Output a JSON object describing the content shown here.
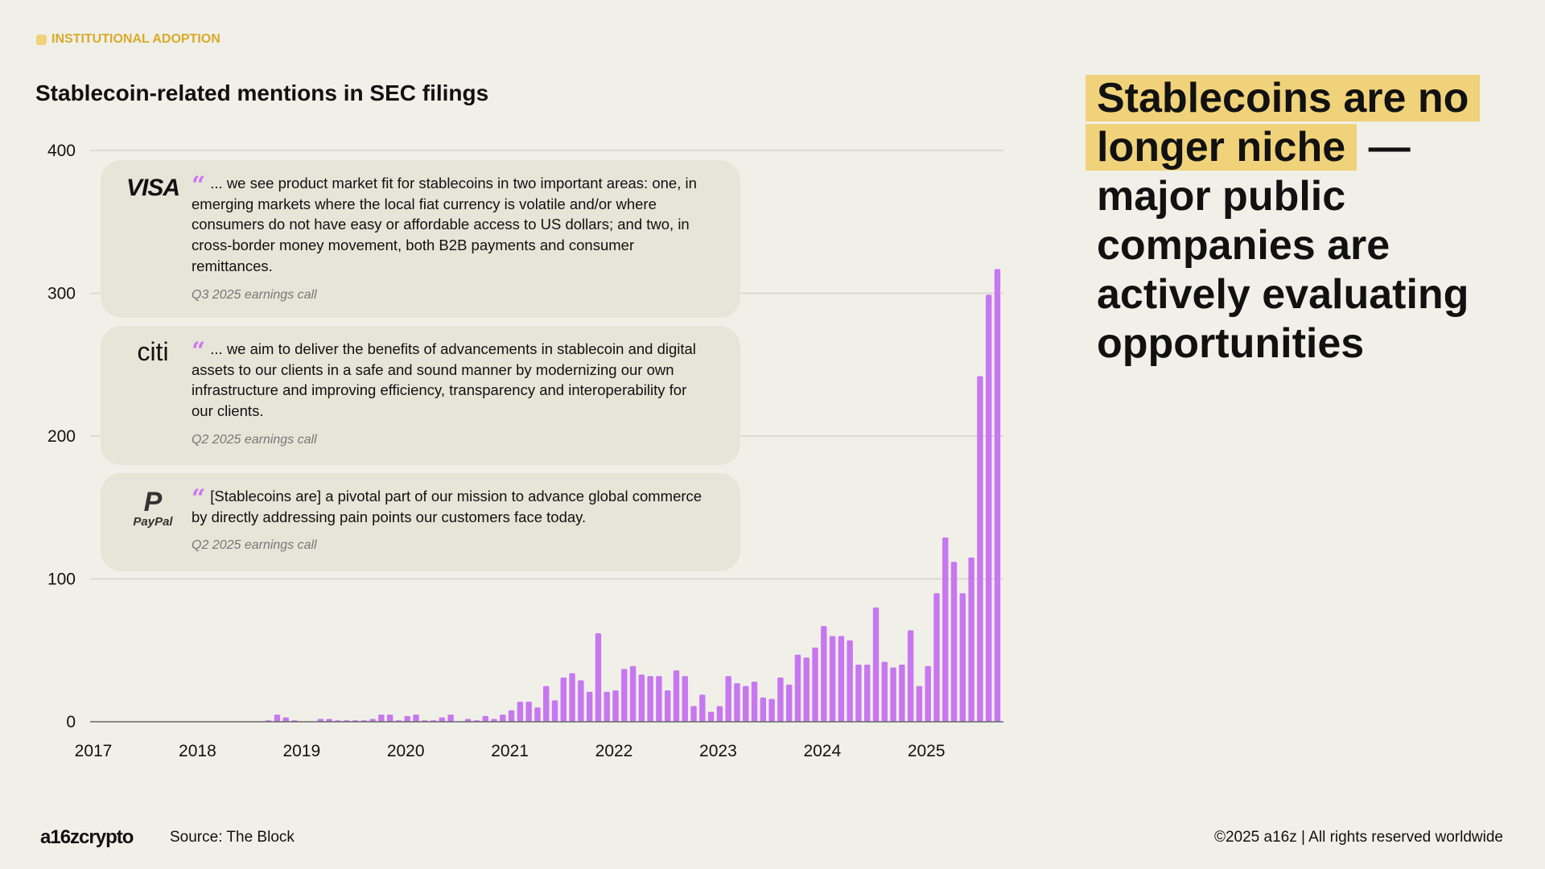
{
  "section_tag": "INSTITUTIONAL ADOPTION",
  "colors": {
    "accent": "#C777F0",
    "tag": "#D9A92C",
    "highlight": "#F0D27A",
    "card": "#E7E4D8"
  },
  "chart_data": {
    "type": "bar",
    "title": "Stablecoin-related mentions in SEC filings",
    "ylim": [
      0,
      400
    ],
    "yticks": [
      "0",
      "100",
      "200",
      "300",
      "400"
    ],
    "xticks": [
      "2017",
      "2018",
      "2019",
      "2020",
      "2021",
      "2022",
      "2023",
      "2024",
      "2025"
    ],
    "grid": true,
    "x_start": "2017-01",
    "x_unit": "month",
    "values": [
      0,
      0,
      0,
      0,
      0,
      0,
      0,
      0,
      0,
      0,
      0,
      0,
      0,
      0,
      0,
      0,
      0,
      0,
      0,
      0,
      1,
      5,
      3,
      1,
      0,
      0,
      2,
      2,
      1,
      1,
      1,
      1,
      2,
      5,
      5,
      1,
      4,
      5,
      1,
      1,
      3,
      5,
      0,
      2,
      1,
      4,
      2,
      5,
      8,
      14,
      14,
      10,
      25,
      15,
      31,
      34,
      29,
      21,
      62,
      21,
      22,
      37,
      39,
      33,
      32,
      32,
      22,
      36,
      32,
      11,
      19,
      7,
      11,
      32,
      27,
      25,
      28,
      17,
      16,
      31,
      26,
      47,
      45,
      52,
      67,
      60,
      60,
      57,
      40,
      40,
      80,
      42,
      38,
      40,
      64,
      25,
      39,
      90,
      129,
      112,
      90,
      115,
      242,
      299,
      317
    ]
  },
  "quotes": [
    {
      "logo": "VISA",
      "text": "... we see product market fit for stablecoins in two important areas: one, in emerging markets where the local fiat currency is volatile and/or where consumers do not have easy or affordable access to US dollars; and two, in cross-border money movement, both B2B payments and consumer remittances.",
      "source": "Q3 2025 earnings call"
    },
    {
      "logo": "citi",
      "text": "... we aim to deliver the benefits of advancements in stablecoin and digital assets to our clients in a safe and sound manner by modernizing our own infrastructure and improving efficiency, transparency and interoperability for our clients.",
      "source": "Q2 2025 earnings call"
    },
    {
      "logo": "PayPal",
      "text": "[Stablecoins are] a pivotal part of our mission to advance global commerce by directly addressing pain points our customers face today.",
      "source": "Q2 2025 earnings call"
    }
  ],
  "headline": {
    "highlighted": "Stablecoins are no longer niche",
    "rest": " — major public companies are actively evaluating opportunities"
  },
  "footer": {
    "brand": "a16zcrypto",
    "source": "Source: The Block",
    "copyright": "©2025 a16z | All rights reserved worldwide"
  }
}
